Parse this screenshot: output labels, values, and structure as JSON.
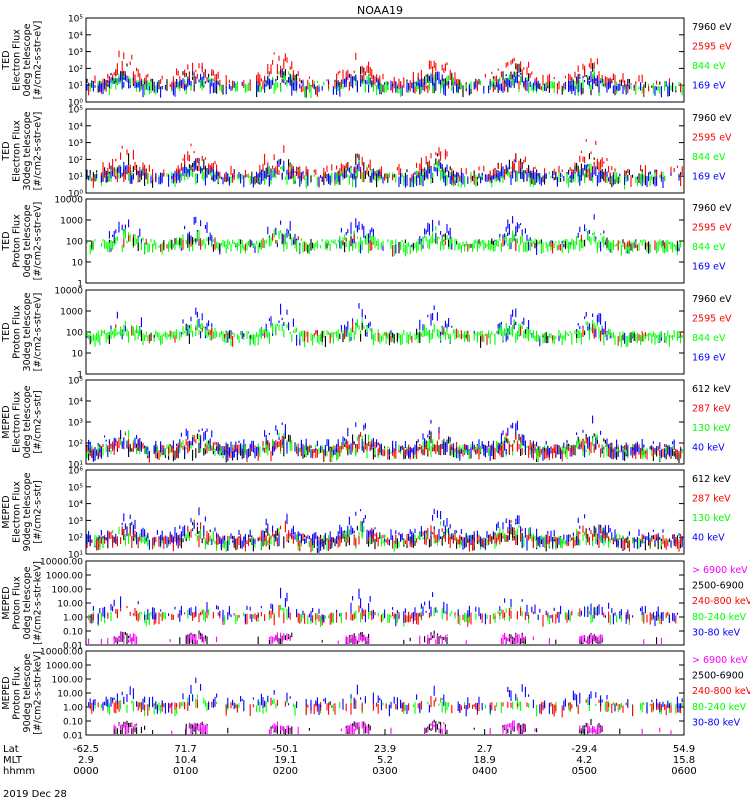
{
  "title": "NOAA19",
  "date_label": "2019 Dec 28",
  "colors": {
    "black": "#000000",
    "red": "#ff0000",
    "green": "#00ff00",
    "blue": "#0000ff",
    "magenta": "#ff00ff"
  },
  "chart_data": [
    {
      "type": "scatter",
      "ylabel": [
        "TED",
        "Electron Flux",
        "0deg telescope",
        "[#/cm2-s-str-eV]"
      ],
      "log": true,
      "ylim": [
        1,
        100000
      ],
      "yticks": [
        "10⁰",
        "10¹",
        "10²",
        "10³",
        "10⁴",
        "10⁵"
      ],
      "legend": [
        {
          "label": "7960 eV",
          "color": "black"
        },
        {
          "label": "2595 eV",
          "color": "red"
        },
        {
          "label": "844 eV",
          "color": "green"
        },
        {
          "label": "169 eV",
          "color": "blue"
        }
      ]
    },
    {
      "type": "scatter",
      "ylabel": [
        "TED",
        "Electron Flux",
        "30deg telescope",
        "[#/cm2-s-str-eV]"
      ],
      "log": true,
      "ylim": [
        1,
        100000
      ],
      "yticks": [
        "10⁰",
        "10¹",
        "10²",
        "10³",
        "10⁴",
        "10⁵"
      ],
      "legend": [
        {
          "label": "7960 eV",
          "color": "black"
        },
        {
          "label": "2595 eV",
          "color": "red"
        },
        {
          "label": "844 eV",
          "color": "green"
        },
        {
          "label": "169 eV",
          "color": "blue"
        }
      ]
    },
    {
      "type": "scatter",
      "ylabel": [
        "TED",
        "Proton Flux",
        "0deg telescope",
        "[#/cm2-s-str-eV]"
      ],
      "log": true,
      "ylim": [
        1,
        10000
      ],
      "yticks": [
        "1",
        "10",
        "100",
        "1000",
        "10000"
      ],
      "legend": [
        {
          "label": "7960 eV",
          "color": "black"
        },
        {
          "label": "2595 eV",
          "color": "red"
        },
        {
          "label": "844 eV",
          "color": "green"
        },
        {
          "label": "169 eV",
          "color": "blue"
        }
      ]
    },
    {
      "type": "scatter",
      "ylabel": [
        "TED",
        "Proton Flux",
        "30deg telescope",
        "[#/cm2-s-str-eV]"
      ],
      "log": true,
      "ylim": [
        1,
        10000
      ],
      "yticks": [
        "1",
        "10",
        "100",
        "1000",
        "10000"
      ],
      "legend": [
        {
          "label": "7960 eV",
          "color": "black"
        },
        {
          "label": "2595 eV",
          "color": "red"
        },
        {
          "label": "844 eV",
          "color": "green"
        },
        {
          "label": "169 eV",
          "color": "blue"
        }
      ]
    },
    {
      "type": "scatter",
      "ylabel": [
        "MEPED",
        "Electron Flux",
        "0deg telescope",
        "[#/cm2-s-str]"
      ],
      "log": true,
      "ylim": [
        10,
        100000
      ],
      "yticks": [
        "10¹",
        "10²",
        "10³",
        "10⁴",
        "10⁵"
      ],
      "legend": [
        {
          "label": "612 keV",
          "color": "black"
        },
        {
          "label": "287 keV",
          "color": "red"
        },
        {
          "label": "130 keV",
          "color": "green"
        },
        {
          "label": "40 keV",
          "color": "blue"
        }
      ]
    },
    {
      "type": "scatter",
      "ylabel": [
        "MEPED",
        "Electron Flux",
        "90deg telescope",
        "[#/cm2-s-str]"
      ],
      "log": true,
      "ylim": [
        10,
        1000000
      ],
      "yticks": [
        "10¹",
        "10²",
        "10³",
        "10⁴",
        "10⁵",
        "10⁶"
      ],
      "legend": [
        {
          "label": "612 keV",
          "color": "black"
        },
        {
          "label": "287 keV",
          "color": "red"
        },
        {
          "label": "130 keV",
          "color": "green"
        },
        {
          "label": "40 keV",
          "color": "blue"
        }
      ]
    },
    {
      "type": "scatter",
      "ylabel": [
        "MEPED",
        "Proton Flux",
        "0deg telescope",
        "[#/cm2-s-str-keV]"
      ],
      "log": true,
      "ylim": [
        0.01,
        10000
      ],
      "yticks": [
        "0.01",
        "0.10",
        "1.00",
        "10.00",
        "100.00",
        "1000.00",
        "10000.00"
      ],
      "legend": [
        {
          "label": "> 6900 keV",
          "color": "magenta"
        },
        {
          "label": "2500-6900",
          "color": "black"
        },
        {
          "label": "240-800 keV",
          "color": "red"
        },
        {
          "label": "80-240 keV",
          "color": "green"
        },
        {
          "label": "30-80 keV",
          "color": "blue"
        }
      ]
    },
    {
      "type": "scatter",
      "ylabel": [
        "MEPED",
        "Proton Flux",
        "90deg telescope",
        "[#/cm2-s-str-keV]"
      ],
      "log": true,
      "ylim": [
        0.01,
        10000
      ],
      "yticks": [
        "0.01",
        "0.10",
        "1.00",
        "10.00",
        "100.00",
        "1000.00",
        "10000.00"
      ],
      "legend": [
        {
          "label": "> 6900 keV",
          "color": "magenta"
        },
        {
          "label": "2500-6900",
          "color": "black"
        },
        {
          "label": "240-800 keV",
          "color": "red"
        },
        {
          "label": "80-240 keV",
          "color": "green"
        },
        {
          "label": "30-80 keV",
          "color": "blue"
        }
      ]
    }
  ],
  "xaxis": {
    "row_labels": [
      "Lat",
      "MLT",
      "hhmm"
    ],
    "ticks": [
      {
        "lat": "-62.5",
        "mlt": "2.9",
        "hhmm": "0000"
      },
      {
        "lat": "71.7",
        "mlt": "10.4",
        "hhmm": "0100"
      },
      {
        "lat": "-50.1",
        "mlt": "19.1",
        "hhmm": "0200"
      },
      {
        "lat": "23.9",
        "mlt": "5.2",
        "hhmm": "0300"
      },
      {
        "lat": "2.7",
        "mlt": "18.9",
        "hhmm": "0400"
      },
      {
        "lat": "-29.4",
        "mlt": "4.2",
        "hhmm": "0500"
      },
      {
        "lat": "54.9",
        "mlt": "15.8",
        "hhmm": "0600"
      }
    ]
  }
}
